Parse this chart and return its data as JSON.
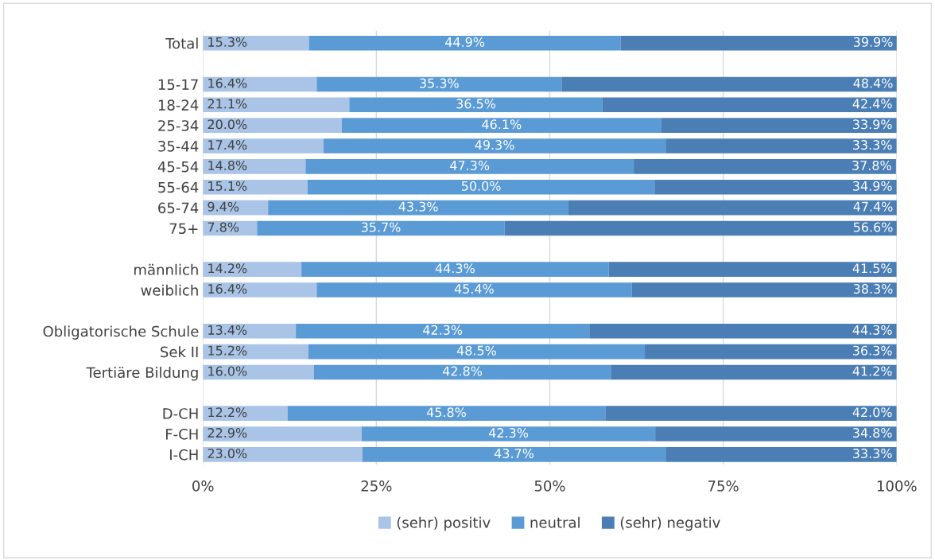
{
  "chart_data": {
    "type": "bar",
    "orientation": "horizontal",
    "stacked": true,
    "categories": [
      "Total",
      null,
      "15-17",
      "18-24",
      "25-34",
      "35-44",
      "45-54",
      "55-64",
      "65-74",
      "75+",
      null,
      "männlich",
      "weiblich",
      null,
      "Obligatorische Schule",
      "Sek II",
      "Tertiäre Bildung",
      null,
      "D-CH",
      "F-CH",
      "I-CH"
    ],
    "series": [
      {
        "name": "(sehr) positiv",
        "color": "#a9c4e6",
        "values": [
          15.3,
          null,
          16.4,
          21.1,
          20.0,
          17.4,
          14.8,
          15.1,
          9.4,
          7.8,
          null,
          14.2,
          16.4,
          null,
          13.4,
          15.2,
          16.0,
          null,
          12.2,
          22.9,
          23.0
        ],
        "value_labels": [
          "15.3%",
          null,
          "16.4%",
          "21.1%",
          "20.0%",
          "17.4%",
          "14.8%",
          "15.1%",
          "9.4%",
          "7.8%",
          null,
          "14.2%",
          "16.4%",
          null,
          "13.4%",
          "15.2%",
          "16.0%",
          null,
          "12.2%",
          "22.9%",
          "23.0%"
        ]
      },
      {
        "name": "neutral",
        "color": "#5b9bd5",
        "values": [
          44.9,
          null,
          35.3,
          36.5,
          46.1,
          49.3,
          47.3,
          50.0,
          43.3,
          35.7,
          null,
          44.3,
          45.4,
          null,
          42.3,
          48.5,
          42.8,
          null,
          45.8,
          42.3,
          43.7
        ],
        "value_labels": [
          "44.9%",
          null,
          "35.3%",
          "36.5%",
          "46.1%",
          "49.3%",
          "47.3%",
          "50.0%",
          "43.3%",
          "35.7%",
          null,
          "44.3%",
          "45.4%",
          null,
          "42.3%",
          "48.5%",
          "42.8%",
          null,
          "45.8%",
          "42.3%",
          "43.7%"
        ]
      },
      {
        "name": "(sehr) negativ",
        "color": "#4a7eb4",
        "values": [
          39.9,
          null,
          48.4,
          42.4,
          33.9,
          33.3,
          37.8,
          34.9,
          47.4,
          56.6,
          null,
          41.5,
          38.3,
          null,
          44.3,
          36.3,
          41.2,
          null,
          42.0,
          34.8,
          33.3
        ],
        "value_labels": [
          "39.9%",
          null,
          "48.4%",
          "42.4%",
          "33.9%",
          "33.3%",
          "37.8%",
          "34.9%",
          "47.4%",
          "56.6%",
          null,
          "41.5%",
          "38.3%",
          null,
          "44.3%",
          "36.3%",
          "41.2%",
          null,
          "42.0%",
          "34.8%",
          "33.3%"
        ]
      }
    ],
    "xlim": [
      0,
      100
    ],
    "xticks": [
      {
        "value": 0,
        "label": "0%"
      },
      {
        "value": 25,
        "label": "25%"
      },
      {
        "value": 50,
        "label": "50%"
      },
      {
        "value": 75,
        "label": "75%"
      },
      {
        "value": 100,
        "label": "100%"
      }
    ],
    "grid": "x",
    "legend": "bottom"
  }
}
